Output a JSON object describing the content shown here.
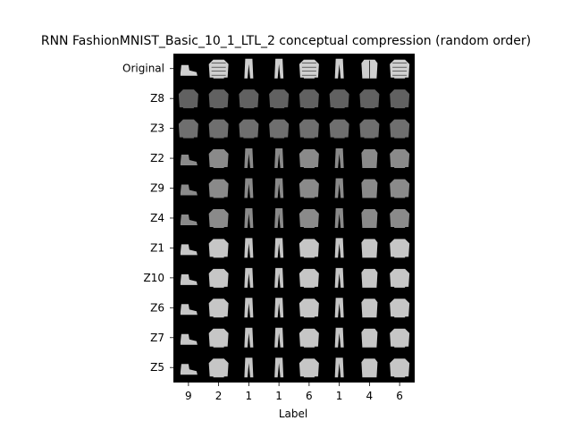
{
  "chart_data": {
    "type": "image-grid",
    "title": "RNN FashionMNIST_Basic_10_1_LTL_2 conceptual compression (random order)",
    "xlabel": "Label",
    "row_labels": [
      "Original",
      "Z8",
      "Z3",
      "Z2",
      "Z9",
      "Z4",
      "Z1",
      "Z10",
      "Z6",
      "Z7",
      "Z5"
    ],
    "column_labels": [
      "9",
      "2",
      "1",
      "1",
      "6",
      "1",
      "4",
      "6"
    ],
    "column_items": [
      "ankle-boot",
      "pullover",
      "trouser",
      "trouser",
      "shirt",
      "trouser",
      "coat",
      "shirt"
    ],
    "background_color": "#000000"
  }
}
